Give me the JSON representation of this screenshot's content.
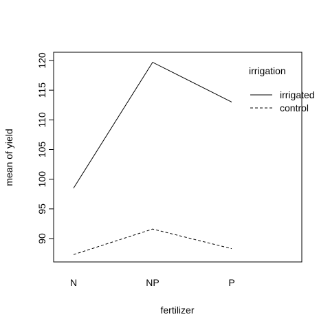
{
  "chart_data": {
    "type": "line",
    "categories": [
      "N",
      "NP",
      "P"
    ],
    "series": [
      {
        "name": "irrigated",
        "values": [
          98.5,
          119.7,
          113.0
        ],
        "linestyle": "solid"
      },
      {
        "name": "control",
        "values": [
          87.3,
          91.6,
          88.3
        ],
        "linestyle": "dashed"
      }
    ],
    "xlabel": "fertilizer",
    "ylabel": "mean of yield",
    "ylim": [
      86,
      121
    ],
    "yticks": [
      90,
      95,
      100,
      105,
      110,
      115,
      120
    ],
    "legend": {
      "title": "irrigation",
      "placement": "top-right"
    },
    "grid": false,
    "colors": {
      "line": "#000000",
      "axis": "#000000",
      "background": "#ffffff"
    }
  }
}
